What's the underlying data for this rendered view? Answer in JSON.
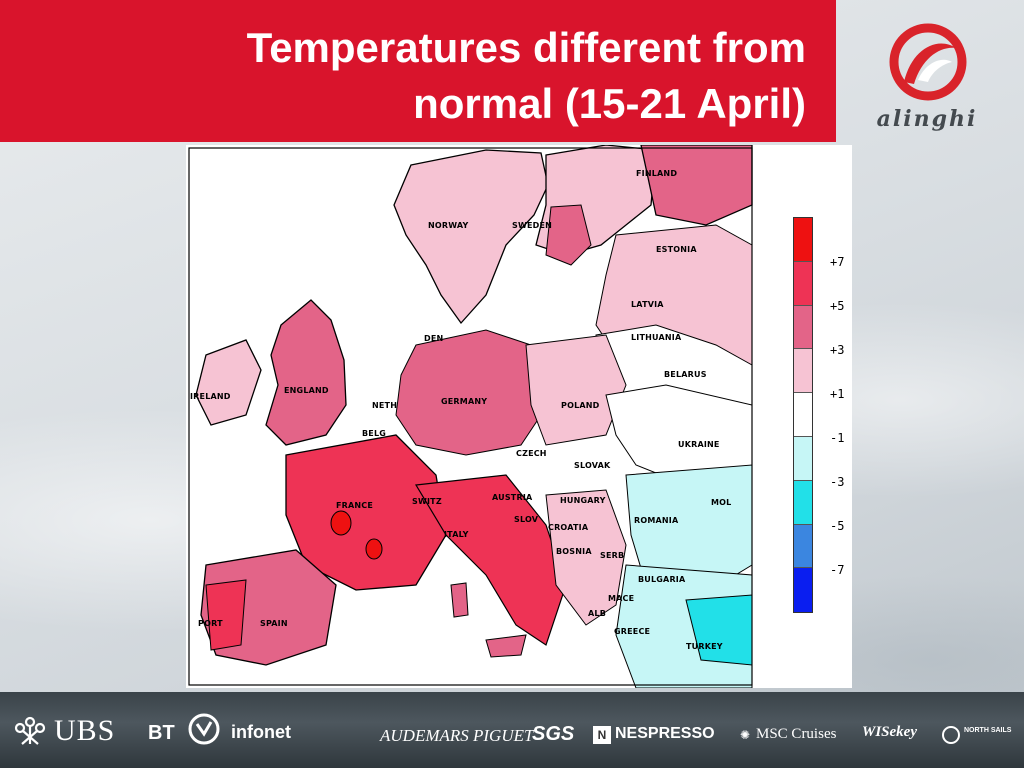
{
  "header": {
    "title_line1": "Temperatures different from",
    "title_line2": "normal (15-21 April)",
    "logo_text": "alinghi"
  },
  "map": {
    "country_labels": [
      "FINLAND",
      "NORWAY",
      "SWEDEN",
      "ESTONIA",
      "LATVIA",
      "LITHUANIA",
      "BELARUS",
      "DEN",
      "ENGLAND",
      "IRELAND",
      "NETH",
      "BELG",
      "GERMANY",
      "POLAND",
      "UKRAINE",
      "CZECH",
      "SLOVAK",
      "HUNGARY",
      "FRANCE",
      "SWITZ",
      "AUSTRIA",
      "SLOV",
      "CROATIA",
      "ROMANIA",
      "MOL",
      "ITALY",
      "BOSNIA",
      "SERB",
      "BULGARIA",
      "PORT",
      "SPAIN",
      "MACE",
      "ALB",
      "GREECE",
      "TURKEY"
    ],
    "legend": {
      "colors": [
        "#ee1111",
        "#ee3355",
        "#e36488",
        "#f6c3d3",
        "#ffffff",
        "#c6f6f6",
        "#22e0e8",
        "#3b86e0",
        "#0a1ef0"
      ],
      "labels": [
        "+7",
        "+5",
        "+3",
        "+1",
        "-1",
        "-3",
        "-5",
        "-7"
      ]
    }
  },
  "footer": {
    "sponsors": [
      "UBS",
      "BT",
      "infonet",
      "AUDEMARS PIGUET",
      "SGS",
      "NESPRESSO",
      "MSC Cruises",
      "WISekey",
      "NORTH SAILS"
    ]
  }
}
